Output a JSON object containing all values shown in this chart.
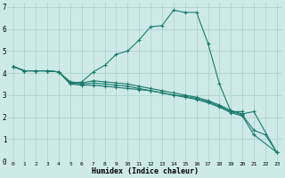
{
  "xlabel": "Humidex (Indice chaleur)",
  "bg_color": "#ceeae8",
  "grid_color": "#aacfcc",
  "line_color": "#1a7a6e",
  "xlim": [
    -0.5,
    23.5
  ],
  "ylim": [
    0,
    7.2
  ],
  "xticks": [
    0,
    1,
    2,
    3,
    4,
    5,
    6,
    7,
    8,
    9,
    10,
    11,
    12,
    13,
    14,
    15,
    16,
    17,
    18,
    19,
    20,
    21,
    22,
    23
  ],
  "yticks": [
    0,
    1,
    2,
    3,
    4,
    5,
    6,
    7
  ],
  "series": [
    {
      "x": [
        0,
        1,
        2,
        3,
        4,
        5,
        6,
        7,
        8,
        9,
        10,
        11,
        12,
        13,
        14,
        15,
        16,
        17,
        18,
        19,
        20
      ],
      "y": [
        4.3,
        4.1,
        4.1,
        4.1,
        4.05,
        3.5,
        3.6,
        4.05,
        4.35,
        4.85,
        5.0,
        5.5,
        6.1,
        6.15,
        6.85,
        6.75,
        6.75,
        5.35,
        3.5,
        2.25,
        2.25
      ]
    },
    {
      "x": [
        0,
        1,
        2,
        3,
        4,
        5,
        6,
        7,
        8,
        9,
        10,
        11,
        12,
        13,
        14,
        15,
        16,
        17,
        18,
        19,
        20,
        21,
        22,
        23
      ],
      "y": [
        4.3,
        4.1,
        4.1,
        4.1,
        4.05,
        3.5,
        3.45,
        3.45,
        3.4,
        3.35,
        3.3,
        3.25,
        3.2,
        3.1,
        3.0,
        2.95,
        2.85,
        2.7,
        2.5,
        2.25,
        2.1,
        1.4,
        1.2,
        0.4
      ]
    },
    {
      "x": [
        0,
        1,
        2,
        3,
        4,
        5,
        6,
        7,
        8,
        9,
        10,
        11,
        12,
        13,
        14,
        15,
        16,
        17,
        18,
        19,
        20,
        21,
        23
      ],
      "y": [
        4.3,
        4.1,
        4.1,
        4.1,
        4.05,
        3.55,
        3.5,
        3.55,
        3.5,
        3.45,
        3.4,
        3.3,
        3.2,
        3.1,
        3.0,
        2.9,
        2.8,
        2.65,
        2.45,
        2.2,
        2.05,
        1.2,
        0.4
      ]
    },
    {
      "x": [
        0,
        1,
        2,
        3,
        4,
        5,
        6,
        7,
        8,
        9,
        10,
        11,
        12,
        13,
        14,
        15,
        16,
        17,
        18,
        19,
        20,
        21,
        23
      ],
      "y": [
        4.3,
        4.1,
        4.1,
        4.1,
        4.05,
        3.6,
        3.55,
        3.65,
        3.6,
        3.55,
        3.5,
        3.4,
        3.3,
        3.2,
        3.1,
        3.0,
        2.9,
        2.75,
        2.55,
        2.3,
        2.15,
        2.25,
        0.4
      ]
    }
  ]
}
